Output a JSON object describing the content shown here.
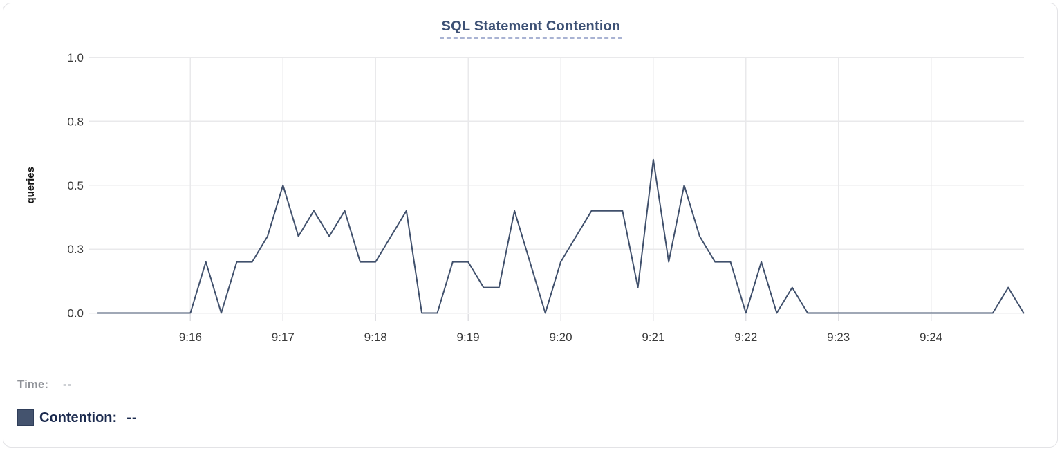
{
  "card": {
    "title": "SQL Statement Contention"
  },
  "chart_data": {
    "type": "line",
    "title": "SQL Statement Contention",
    "xlabel": "",
    "ylabel": "queries",
    "ylim": [
      0,
      1
    ],
    "grid": true,
    "legend_position": "bottom-left",
    "x_range": [
      "9:15:00",
      "9:25:00"
    ],
    "x_step_seconds": 10,
    "x_tick_labels": [
      "9:16",
      "9:17",
      "9:18",
      "9:19",
      "9:20",
      "9:21",
      "9:22",
      "9:23",
      "9:24"
    ],
    "y_tick_values": [
      0,
      0.25,
      0.5,
      0.75,
      1.0
    ],
    "y_tick_labels": [
      "0.0",
      "0.3",
      "0.5",
      "0.8",
      "1.0"
    ],
    "series": [
      {
        "name": "Contention",
        "color": "#40506c",
        "times": [
          "9:15:00",
          "9:15:10",
          "9:15:20",
          "9:15:30",
          "9:15:40",
          "9:15:50",
          "9:16:00",
          "9:16:10",
          "9:16:20",
          "9:16:30",
          "9:16:40",
          "9:16:50",
          "9:17:00",
          "9:17:10",
          "9:17:20",
          "9:17:30",
          "9:17:40",
          "9:17:50",
          "9:18:00",
          "9:18:10",
          "9:18:20",
          "9:18:30",
          "9:18:40",
          "9:18:50",
          "9:19:00",
          "9:19:10",
          "9:19:20",
          "9:19:30",
          "9:19:40",
          "9:19:50",
          "9:20:00",
          "9:20:10",
          "9:20:20",
          "9:20:30",
          "9:20:40",
          "9:20:50",
          "9:21:00",
          "9:21:10",
          "9:21:20",
          "9:21:30",
          "9:21:40",
          "9:21:50",
          "9:22:00",
          "9:22:10",
          "9:22:20",
          "9:22:30",
          "9:22:40",
          "9:22:50",
          "9:23:00",
          "9:23:10",
          "9:23:20",
          "9:23:30",
          "9:23:40",
          "9:23:50",
          "9:24:00",
          "9:24:10",
          "9:24:20",
          "9:24:30",
          "9:24:40",
          "9:24:50",
          "9:25:00"
        ],
        "values": [
          0,
          0,
          0,
          0,
          0,
          0,
          0,
          0.2,
          0,
          0.2,
          0.2,
          0.3,
          0.5,
          0.3,
          0.4,
          0.3,
          0.4,
          0.2,
          0.2,
          0.3,
          0.4,
          0,
          0,
          0.2,
          0.2,
          0.1,
          0.1,
          0.4,
          0.2,
          0,
          0.2,
          0.3,
          0.4,
          0.4,
          0.4,
          0.1,
          0.6,
          0.2,
          0.5,
          0.3,
          0.2,
          0.2,
          0,
          0.2,
          0,
          0.1,
          0,
          0,
          0,
          0,
          0,
          0,
          0,
          0,
          0,
          0,
          0,
          0,
          0,
          0.1,
          0
        ]
      }
    ]
  },
  "tooltip_panel": {
    "time_label": "Time:",
    "time_value": "--",
    "series_label": "Contention:",
    "series_value": "--"
  },
  "colors": {
    "line": "#40506c",
    "legend_swatch": "#44536e",
    "legend_swatch_border": "#2f3e5a",
    "title": "#3d5175",
    "title_underline": "#a9b3d3",
    "grid": "#e9e9eb",
    "axis_tick": "#dfdfe3",
    "axis_text": "#3a3a3a",
    "time_text": "#8f9298",
    "time_value_text": "#9ba0a8",
    "contention_text": "#1b2a4e",
    "card_border": "#e3e3e6"
  }
}
